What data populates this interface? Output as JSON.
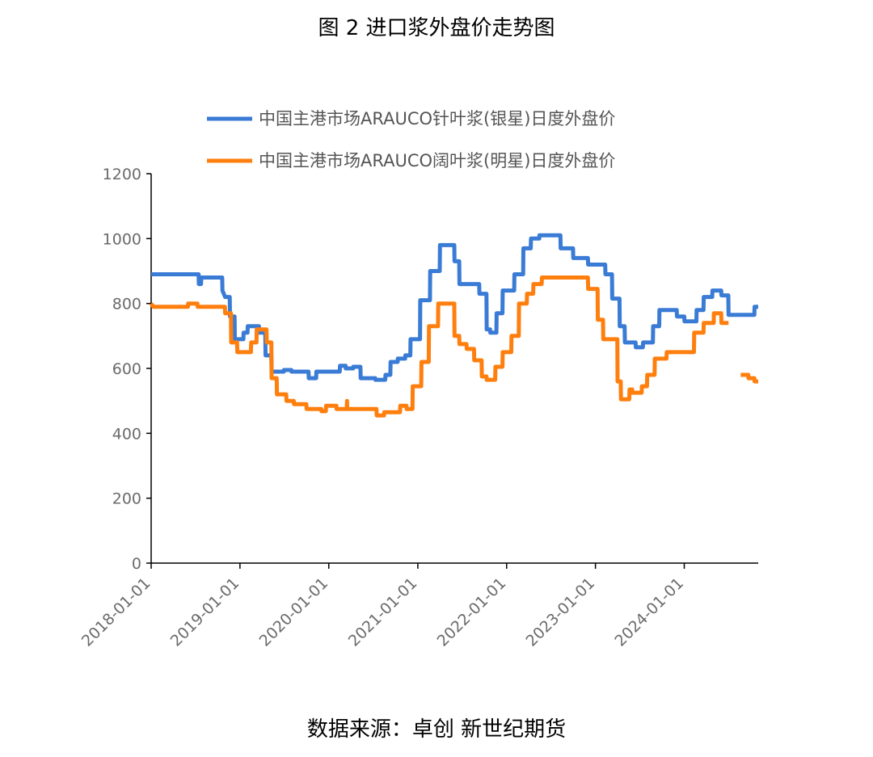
{
  "chart_data": {
    "type": "line",
    "title": "图 2  进口浆外盘价走势图",
    "source": "数据来源：卓创  新世纪期货",
    "xlabel": "",
    "ylabel": "",
    "ylim": [
      0,
      1200
    ],
    "yticks": [
      "0",
      "200",
      "400",
      "600",
      "800",
      "1000",
      "1200"
    ],
    "xlim": [
      "2018-01-01",
      "2024-10-31"
    ],
    "xticks": [
      "2018-01-01",
      "2019-01-01",
      "2020-01-01",
      "2021-01-01",
      "2022-01-01",
      "2023-01-01",
      "2024-01-01"
    ],
    "grid": false,
    "legend_position": "top",
    "series": [
      {
        "name": "中国主港市场ARAUCO针叶浆(银星)日度外盘价",
        "color": "#3A7BD5",
        "points": [
          [
            "2018-01-01",
            890
          ],
          [
            "2018-07-15",
            890
          ],
          [
            "2018-07-16",
            860
          ],
          [
            "2018-07-25",
            860
          ],
          [
            "2018-07-26",
            880
          ],
          [
            "2018-10-20",
            880
          ],
          [
            "2018-10-21",
            840
          ],
          [
            "2018-11-01",
            820
          ],
          [
            "2018-11-20",
            820
          ],
          [
            "2018-11-21",
            760
          ],
          [
            "2018-12-10",
            760
          ],
          [
            "2018-12-11",
            690
          ],
          [
            "2019-01-15",
            690
          ],
          [
            "2019-01-16",
            710
          ],
          [
            "2019-02-01",
            710
          ],
          [
            "2019-02-02",
            730
          ],
          [
            "2019-03-20",
            730
          ],
          [
            "2019-03-21",
            710
          ],
          [
            "2019-04-15",
            710
          ],
          [
            "2019-04-16",
            640
          ],
          [
            "2019-05-10",
            640
          ],
          [
            "2019-05-11",
            590
          ],
          [
            "2019-06-30",
            590
          ],
          [
            "2019-07-01",
            595
          ],
          [
            "2019-07-31",
            595
          ],
          [
            "2019-08-01",
            590
          ],
          [
            "2019-10-10",
            590
          ],
          [
            "2019-10-11",
            570
          ],
          [
            "2019-11-10",
            570
          ],
          [
            "2019-11-11",
            590
          ],
          [
            "2020-02-15",
            590
          ],
          [
            "2020-02-16",
            608
          ],
          [
            "2020-03-10",
            608
          ],
          [
            "2020-03-11",
            600
          ],
          [
            "2020-04-10",
            600
          ],
          [
            "2020-04-11",
            605
          ],
          [
            "2020-05-10",
            605
          ],
          [
            "2020-05-11",
            570
          ],
          [
            "2020-07-10",
            570
          ],
          [
            "2020-07-11",
            565
          ],
          [
            "2020-08-20",
            565
          ],
          [
            "2020-08-21",
            580
          ],
          [
            "2020-09-10",
            580
          ],
          [
            "2020-09-11",
            620
          ],
          [
            "2020-10-10",
            620
          ],
          [
            "2020-10-11",
            630
          ],
          [
            "2020-11-10",
            630
          ],
          [
            "2020-11-11",
            640
          ],
          [
            "2020-12-01",
            640
          ],
          [
            "2020-12-02",
            690
          ],
          [
            "2021-01-10",
            690
          ],
          [
            "2021-01-11",
            810
          ],
          [
            "2021-02-20",
            810
          ],
          [
            "2021-02-21",
            900
          ],
          [
            "2021-04-01",
            900
          ],
          [
            "2021-04-02",
            980
          ],
          [
            "2021-05-31",
            980
          ],
          [
            "2021-06-01",
            930
          ],
          [
            "2021-06-20",
            930
          ],
          [
            "2021-06-21",
            860
          ],
          [
            "2021-09-10",
            860
          ],
          [
            "2021-09-11",
            830
          ],
          [
            "2021-10-10",
            830
          ],
          [
            "2021-10-11",
            720
          ],
          [
            "2021-10-25",
            720
          ],
          [
            "2021-10-26",
            710
          ],
          [
            "2021-11-20",
            710
          ],
          [
            "2021-11-21",
            770
          ],
          [
            "2021-12-15",
            770
          ],
          [
            "2021-12-16",
            840
          ],
          [
            "2022-02-01",
            840
          ],
          [
            "2022-02-02",
            890
          ],
          [
            "2022-03-10",
            890
          ],
          [
            "2022-03-11",
            970
          ],
          [
            "2022-04-10",
            970
          ],
          [
            "2022-04-11",
            1000
          ],
          [
            "2022-05-15",
            1000
          ],
          [
            "2022-05-16",
            1010
          ],
          [
            "2022-08-10",
            1010
          ],
          [
            "2022-08-11",
            970
          ],
          [
            "2022-10-01",
            970
          ],
          [
            "2022-10-02",
            940
          ],
          [
            "2022-12-01",
            940
          ],
          [
            "2022-12-02",
            920
          ],
          [
            "2023-02-10",
            920
          ],
          [
            "2023-02-11",
            890
          ],
          [
            "2023-03-10",
            890
          ],
          [
            "2023-03-11",
            815
          ],
          [
            "2023-04-10",
            815
          ],
          [
            "2023-04-11",
            730
          ],
          [
            "2023-05-01",
            730
          ],
          [
            "2023-05-02",
            680
          ],
          [
            "2023-06-15",
            680
          ],
          [
            "2023-06-16",
            665
          ],
          [
            "2023-07-15",
            665
          ],
          [
            "2023-07-16",
            680
          ],
          [
            "2023-08-25",
            680
          ],
          [
            "2023-08-26",
            730
          ],
          [
            "2023-09-20",
            730
          ],
          [
            "2023-09-21",
            780
          ],
          [
            "2023-12-01",
            780
          ],
          [
            "2023-12-02",
            760
          ],
          [
            "2024-01-01",
            760
          ],
          [
            "2024-01-02",
            745
          ],
          [
            "2024-02-20",
            745
          ],
          [
            "2024-02-21",
            780
          ],
          [
            "2024-03-20",
            780
          ],
          [
            "2024-03-21",
            820
          ],
          [
            "2024-04-25",
            820
          ],
          [
            "2024-04-26",
            840
          ],
          [
            "2024-06-01",
            840
          ],
          [
            "2024-06-02",
            825
          ],
          [
            "2024-06-30",
            825
          ],
          [
            "2024-07-01",
            765
          ],
          [
            "2024-10-15",
            765
          ],
          [
            "2024-10-16",
            790
          ],
          [
            "2024-10-31",
            790
          ]
        ]
      },
      {
        "name": "中国主港市场ARAUCO阔叶浆(明星)日度外盘价",
        "color": "#FF7F0E",
        "segments": [
          [
            [
              "2018-01-01",
              800
            ],
            [
              "2018-01-10",
              790
            ],
            [
              "2018-06-01",
              790
            ],
            [
              "2018-06-02",
              800
            ],
            [
              "2018-07-10",
              800
            ],
            [
              "2018-07-11",
              790
            ],
            [
              "2018-10-31",
              790
            ],
            [
              "2018-11-01",
              770
            ],
            [
              "2018-11-25",
              770
            ],
            [
              "2018-11-26",
              680
            ],
            [
              "2018-12-20",
              680
            ],
            [
              "2018-12-21",
              650
            ],
            [
              "2019-02-15",
              650
            ],
            [
              "2019-02-16",
              680
            ],
            [
              "2019-03-10",
              680
            ],
            [
              "2019-03-11",
              720
            ],
            [
              "2019-04-20",
              720
            ],
            [
              "2019-04-21",
              680
            ],
            [
              "2019-05-10",
              680
            ],
            [
              "2019-05-11",
              570
            ],
            [
              "2019-06-01",
              570
            ],
            [
              "2019-06-02",
              520
            ],
            [
              "2019-07-10",
              520
            ],
            [
              "2019-07-11",
              500
            ],
            [
              "2019-08-10",
              500
            ],
            [
              "2019-08-11",
              490
            ],
            [
              "2019-10-01",
              490
            ],
            [
              "2019-10-02",
              475
            ],
            [
              "2019-12-01",
              475
            ],
            [
              "2019-12-02",
              468
            ],
            [
              "2019-12-20",
              468
            ],
            [
              "2019-12-21",
              485
            ],
            [
              "2020-02-01",
              485
            ],
            [
              "2020-02-02",
              475
            ],
            [
              "2020-03-15",
              475
            ],
            [
              "2020-03-16",
              500
            ],
            [
              "2020-03-17",
              475
            ],
            [
              "2020-07-15",
              475
            ],
            [
              "2020-07-16",
              455
            ],
            [
              "2020-08-15",
              455
            ],
            [
              "2020-08-16",
              465
            ],
            [
              "2020-10-20",
              465
            ],
            [
              "2020-10-21",
              485
            ],
            [
              "2020-11-15",
              485
            ],
            [
              "2020-11-16",
              475
            ],
            [
              "2020-12-10",
              475
            ],
            [
              "2020-12-11",
              545
            ],
            [
              "2021-01-15",
              545
            ],
            [
              "2021-01-16",
              620
            ],
            [
              "2021-02-15",
              620
            ],
            [
              "2021-02-16",
              730
            ],
            [
              "2021-03-25",
              730
            ],
            [
              "2021-03-26",
              800
            ],
            [
              "2021-05-31",
              800
            ],
            [
              "2021-06-01",
              700
            ],
            [
              "2021-06-20",
              700
            ],
            [
              "2021-06-21",
              675
            ],
            [
              "2021-07-20",
              675
            ],
            [
              "2021-07-21",
              660
            ],
            [
              "2021-08-20",
              660
            ],
            [
              "2021-08-21",
              625
            ],
            [
              "2021-09-20",
              625
            ],
            [
              "2021-09-21",
              575
            ],
            [
              "2021-10-10",
              575
            ],
            [
              "2021-10-11",
              565
            ],
            [
              "2021-11-15",
              565
            ],
            [
              "2021-11-16",
              605
            ],
            [
              "2021-12-15",
              605
            ],
            [
              "2021-12-16",
              650
            ],
            [
              "2022-01-20",
              650
            ],
            [
              "2022-01-21",
              700
            ],
            [
              "2022-02-20",
              700
            ],
            [
              "2022-02-21",
              800
            ],
            [
              "2022-03-25",
              800
            ],
            [
              "2022-03-26",
              830
            ],
            [
              "2022-04-20",
              830
            ],
            [
              "2022-04-21",
              860
            ],
            [
              "2022-05-25",
              860
            ],
            [
              "2022-05-26",
              880
            ],
            [
              "2022-12-01",
              880
            ],
            [
              "2022-12-02",
              845
            ],
            [
              "2023-01-10",
              845
            ],
            [
              "2023-01-11",
              750
            ],
            [
              "2023-02-01",
              750
            ],
            [
              "2023-02-02",
              690
            ],
            [
              "2023-04-01",
              690
            ],
            [
              "2023-04-02",
              560
            ],
            [
              "2023-04-15",
              560
            ],
            [
              "2023-04-16",
              505
            ],
            [
              "2023-05-20",
              505
            ],
            [
              "2023-05-21",
              535
            ],
            [
              "2023-06-01",
              535
            ],
            [
              "2023-06-02",
              525
            ],
            [
              "2023-07-10",
              525
            ],
            [
              "2023-07-11",
              545
            ],
            [
              "2023-08-01",
              545
            ],
            [
              "2023-08-02",
              580
            ],
            [
              "2023-09-01",
              580
            ],
            [
              "2023-09-02",
              630
            ],
            [
              "2023-10-20",
              630
            ],
            [
              "2023-10-21",
              650
            ],
            [
              "2024-02-10",
              650
            ],
            [
              "2024-02-11",
              710
            ],
            [
              "2024-03-20",
              710
            ],
            [
              "2024-03-21",
              740
            ],
            [
              "2024-05-01",
              740
            ],
            [
              "2024-05-02",
              770
            ],
            [
              "2024-06-01",
              770
            ],
            [
              "2024-06-02",
              740
            ],
            [
              "2024-07-01",
              740
            ]
          ],
          [
            [
              "2024-08-20",
              580
            ],
            [
              "2024-09-20",
              580
            ],
            [
              "2024-09-21",
              570
            ],
            [
              "2024-10-15",
              570
            ],
            [
              "2024-10-16",
              560
            ],
            [
              "2024-10-31",
              560
            ]
          ]
        ]
      }
    ]
  }
}
